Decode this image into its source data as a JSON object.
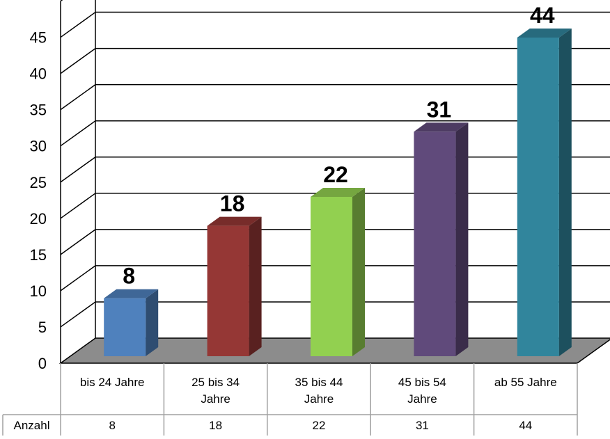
{
  "chart_data": {
    "type": "bar",
    "categories": [
      "bis 24 Jahre",
      "25 bis 34 Jahre",
      "35 bis 44 Jahre",
      "45 bis 54 Jahre",
      "ab 55 Jahre"
    ],
    "category_lines": [
      [
        "bis 24 Jahre"
      ],
      [
        "25 bis 34",
        "Jahre"
      ],
      [
        "35 bis 44",
        "Jahre"
      ],
      [
        "45 bis 54",
        "Jahre"
      ],
      [
        "ab 55 Jahre"
      ]
    ],
    "series": [
      {
        "name": "Anzahl",
        "values": [
          8,
          18,
          22,
          31,
          44
        ]
      }
    ],
    "data_labels": [
      "8",
      "18",
      "22",
      "31",
      "44"
    ],
    "yticks": [
      "0",
      "5",
      "10",
      "15",
      "20",
      "25",
      "30",
      "35",
      "40",
      "45"
    ],
    "ylim": [
      0,
      45
    ],
    "table": {
      "row_header": "Anzahl",
      "values": [
        "8",
        "18",
        "22",
        "31",
        "44"
      ]
    },
    "colors": {
      "bars": [
        "#4F81BD",
        "#953735",
        "#92D050",
        "#604A7B",
        "#31859C"
      ],
      "floor": "#8c8c8c",
      "gridline": "#000000"
    },
    "grid": true,
    "three_d": true,
    "legend": "none"
  }
}
